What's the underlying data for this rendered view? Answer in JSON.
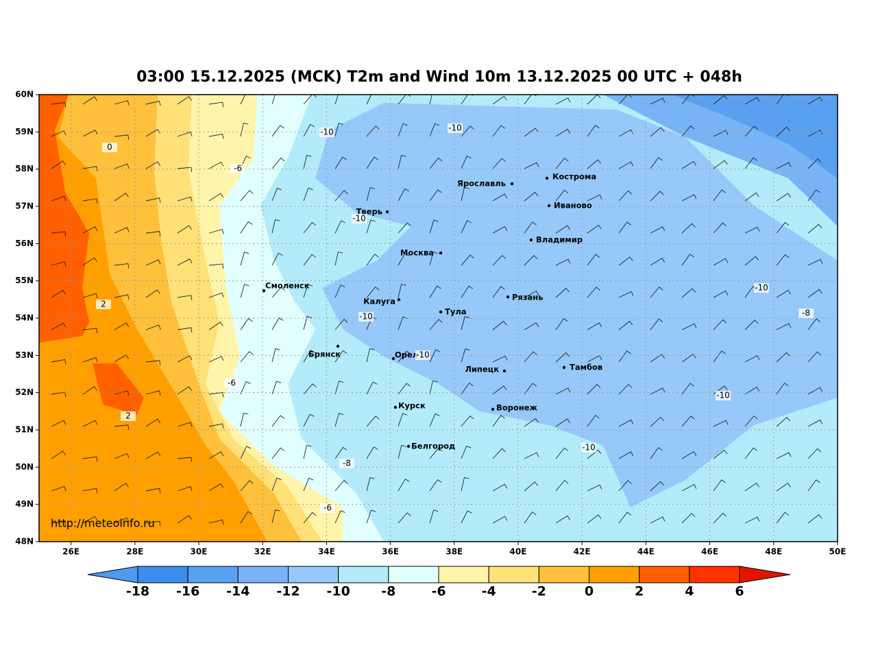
{
  "header": {
    "title": "03:00 15.12.2025 (MCK) T2m and Wind 10m 13.12.2025 00 UTC + 048h"
  },
  "map": {
    "lonlim": [
      25,
      50
    ],
    "latlim": [
      48,
      60
    ],
    "lat_ticks": [
      {
        "value": 48,
        "label": "48N"
      },
      {
        "value": 49,
        "label": "49N"
      },
      {
        "value": 50,
        "label": "50N"
      },
      {
        "value": 51,
        "label": "51N"
      },
      {
        "value": 52,
        "label": "52N"
      },
      {
        "value": 53,
        "label": "53N"
      },
      {
        "value": 54,
        "label": "54N"
      },
      {
        "value": 55,
        "label": "55N"
      },
      {
        "value": 56,
        "label": "56N"
      },
      {
        "value": 57,
        "label": "57N"
      },
      {
        "value": 58,
        "label": "58N"
      },
      {
        "value": 59,
        "label": "59N"
      },
      {
        "value": 60,
        "label": "60N"
      }
    ],
    "lon_ticks": [
      {
        "value": 26,
        "label": "26E"
      },
      {
        "value": 28,
        "label": "28E"
      },
      {
        "value": 30,
        "label": "30E"
      },
      {
        "value": 32,
        "label": "32E"
      },
      {
        "value": 34,
        "label": "34E"
      },
      {
        "value": 36,
        "label": "36E"
      },
      {
        "value": 38,
        "label": "38E"
      },
      {
        "value": 40,
        "label": "40E"
      },
      {
        "value": 42,
        "label": "42E"
      },
      {
        "value": 44,
        "label": "44E"
      },
      {
        "value": 46,
        "label": "46E"
      },
      {
        "value": 48,
        "label": "48E"
      },
      {
        "value": 50,
        "label": "50E"
      }
    ],
    "grid": true,
    "cities": [
      "Кострома",
      "Ярославль",
      "Иваново",
      "Тверь",
      "Владимир",
      "Москва",
      "Смоленск",
      "Калуга",
      "Рязань",
      "Тула",
      "Брянск",
      "Орел",
      "Липецк",
      "Тамбов",
      "Курск",
      "Воронеж",
      "Белгород"
    ],
    "contour_labels": [
      "-10",
      "-10",
      "-6",
      "0",
      "-10",
      "-10",
      "2",
      "-10",
      "-8",
      "-10",
      "-6",
      "-10",
      "2",
      "-10",
      "-8",
      "-6"
    ],
    "source": "http://meteoinfo.ru"
  },
  "colorbar": {
    "levels": [
      -18,
      -16,
      -14,
      -12,
      -10,
      -8,
      -6,
      -4,
      -2,
      0,
      2,
      4,
      6
    ],
    "colors": [
      "#3c8cf0",
      "#5aa0f0",
      "#78b4f5",
      "#96c8fa",
      "#b4ebfa",
      "#e1ffff",
      "#fff5aa",
      "#ffe178",
      "#ffc03c",
      "#ffa000",
      "#ff6000",
      "#ff3200"
    ],
    "under_color": "#4f9af0",
    "over_color": "#e11400"
  }
}
